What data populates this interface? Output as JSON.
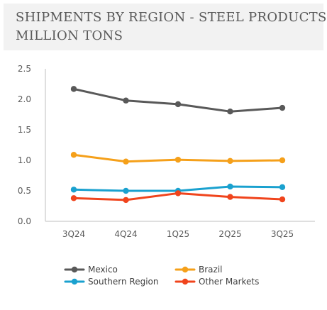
{
  "chart_data": {
    "type": "line",
    "title_line1": "SHIPMENTS BY REGION - STEEL PRODUCTS",
    "title_line2": "MILLION TONS",
    "categories": [
      "3Q24",
      "4Q24",
      "1Q25",
      "2Q25",
      "3Q25"
    ],
    "ylim": [
      0,
      2.5
    ],
    "yticks": [
      "0.0",
      "0.5",
      "1.0",
      "1.5",
      "2.0",
      "2.5"
    ],
    "grid": "none",
    "legend_position": "bottom",
    "series": [
      {
        "name": "Mexico",
        "color": "#595959",
        "values": [
          2.17,
          1.98,
          1.92,
          1.8,
          1.86
        ]
      },
      {
        "name": "Brazil",
        "color": "#f5a01a",
        "values": [
          1.09,
          0.98,
          1.01,
          0.99,
          1.0
        ]
      },
      {
        "name": "Southern Region",
        "color": "#1aa1cf",
        "values": [
          0.52,
          0.5,
          0.5,
          0.57,
          0.56
        ]
      },
      {
        "name": "Other Markets",
        "color": "#f0441c",
        "values": [
          0.38,
          0.35,
          0.46,
          0.4,
          0.36
        ]
      }
    ]
  }
}
